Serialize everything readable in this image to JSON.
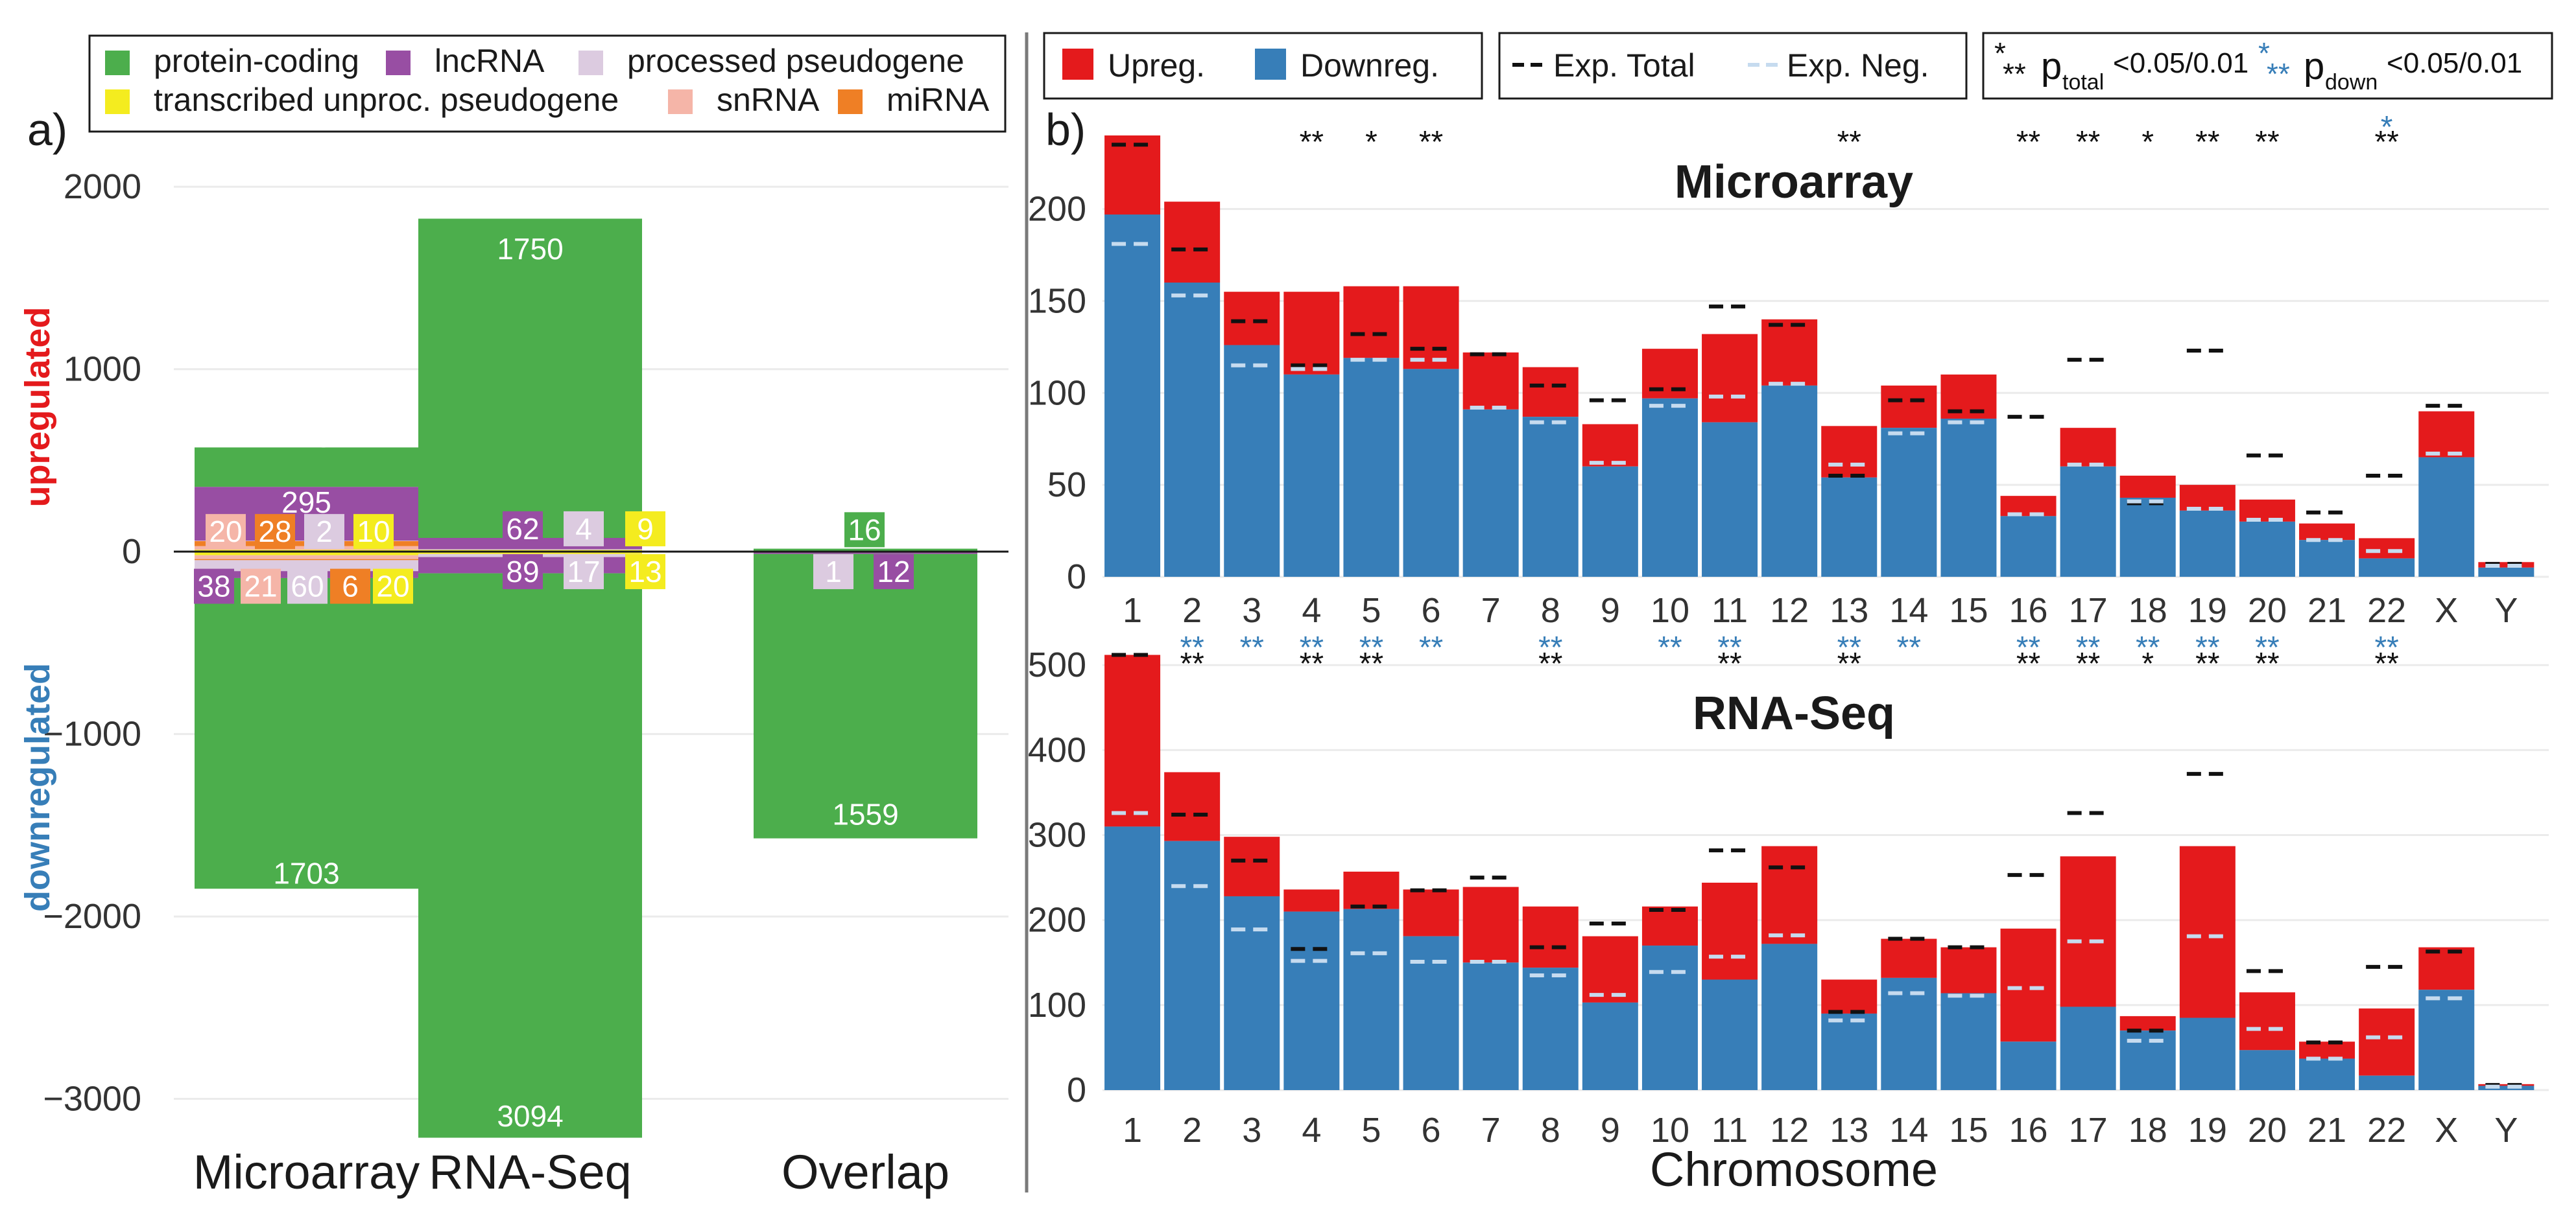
{
  "colors": {
    "protein_coding": "#4cae4c",
    "lncrna": "#984ea3",
    "processed_pseudogene": "#dccbe0",
    "transcribed_unproc_pseudogene": "#f4ec1f",
    "snrna": "#f5b5a8",
    "mirna": "#ef7f25",
    "upreg": "#e41a1c",
    "downreg": "#377eb8",
    "exp_total": "#111111",
    "exp_neg": "#c6dbef",
    "up_axis": "#e41a1c",
    "down_axis": "#377eb8"
  },
  "chart_data": [
    {
      "panel": "a)",
      "type": "bar",
      "stacked": "diverging",
      "categories": [
        "Microarray",
        "RNA-Seq",
        "Overlap"
      ],
      "ylabel_up": "upregulated",
      "ylabel_down": "downregulated",
      "ylim": [
        -3300,
        2100
      ],
      "yticks": [
        2000,
        1000,
        0,
        -1000,
        -2000,
        -3000
      ],
      "ytick_labels": [
        "2000",
        "1000",
        "0",
        "−1000",
        "−2000",
        "−3000"
      ],
      "legend": [
        {
          "key": "protein_coding",
          "label": "protein-coding"
        },
        {
          "key": "lncrna",
          "label": "lncRNA"
        },
        {
          "key": "processed_pseudogene",
          "label": "processed pseudogene"
        },
        {
          "key": "transcribed_unproc_pseudogene",
          "label": "transcribed unproc. pseudogene"
        },
        {
          "key": "snrna",
          "label": "snRNA"
        },
        {
          "key": "mirna",
          "label": "miRNA"
        }
      ],
      "stack_order": [
        "transcribed_unproc_pseudogene",
        "snrna",
        "mirna",
        "processed_pseudogene",
        "lncrna",
        "protein_coding"
      ],
      "up": {
        "protein_coding": [
          216,
          1750,
          16
        ],
        "lncrna": [
          295,
          62,
          0
        ],
        "processed_pseudogene": [
          2,
          4,
          0
        ],
        "transcribed_unproc_pseudogene": [
          10,
          9,
          0
        ],
        "snrna": [
          20,
          0,
          0
        ],
        "mirna": [
          28,
          0,
          0
        ]
      },
      "down": {
        "protein_coding": [
          1703,
          3094,
          1559
        ],
        "lncrna": [
          38,
          89,
          12
        ],
        "processed_pseudogene": [
          60,
          17,
          1
        ],
        "transcribed_unproc_pseudogene": [
          20,
          13,
          0
        ],
        "snrna": [
          21,
          0,
          0
        ],
        "mirna": [
          6,
          0,
          0
        ]
      }
    },
    {
      "panel": "b)",
      "type": "bar",
      "stacked": true,
      "xlabel": "Chromosome",
      "categories": [
        "1",
        "2",
        "3",
        "4",
        "5",
        "6",
        "7",
        "8",
        "9",
        "10",
        "11",
        "12",
        "13",
        "14",
        "15",
        "16",
        "17",
        "18",
        "19",
        "20",
        "21",
        "22",
        "X",
        "Y"
      ],
      "legend": {
        "upreg": "Upreg.",
        "downreg": "Downreg.",
        "exp_total": "Exp. Total",
        "exp_neg": "Exp. Neg.",
        "sig_single": "*",
        "sig_double": "**",
        "p_total_text": "p",
        "p_total_sub": "total",
        "p_down_text": "p",
        "p_down_sub": "down",
        "p_threshold": "<0.05/0.01"
      },
      "panels": [
        {
          "title": "Microarray",
          "ylim": [
            0,
            240
          ],
          "yticks": [
            0,
            50,
            100,
            150,
            200
          ],
          "ytick_labels": [
            "0",
            "50",
            "100",
            "150",
            "200"
          ],
          "down": [
            197,
            160,
            126,
            110,
            119,
            113,
            91,
            87,
            60,
            97,
            84,
            104,
            54,
            81,
            86,
            33,
            60,
            43,
            36,
            30,
            20,
            10,
            65,
            5
          ],
          "total": [
            240,
            204,
            155,
            155,
            158,
            158,
            122,
            114,
            83,
            124,
            132,
            140,
            82,
            104,
            110,
            44,
            81,
            55,
            50,
            42,
            29,
            21,
            90,
            8
          ],
          "exp_total": [
            235,
            178,
            139,
            115,
            132,
            124,
            121,
            104,
            96,
            102,
            147,
            137,
            55,
            96,
            90,
            87,
            118,
            40,
            123,
            66,
            35,
            55,
            93,
            7
          ],
          "exp_neg": [
            181,
            153,
            115,
            113,
            118,
            118,
            92,
            84,
            62,
            93,
            98,
            105,
            61,
            78,
            84,
            34,
            61,
            41,
            37,
            31,
            20,
            14,
            67,
            6
          ],
          "sig_total": [
            "",
            "",
            "",
            "**",
            "*",
            "**",
            "",
            "",
            "",
            "",
            "",
            "",
            "**",
            "",
            "",
            "**",
            "**",
            "*",
            "**",
            "**",
            "",
            "**",
            "",
            ""
          ],
          "sig_down": [
            "",
            "",
            "",
            "",
            "",
            "",
            "",
            "",
            "",
            "",
            "",
            "",
            "",
            "",
            "",
            "",
            "",
            "",
            "",
            "",
            "",
            "*",
            "",
            ""
          ]
        },
        {
          "title": "RNA-Seq",
          "ylim": [
            0,
            520
          ],
          "yticks": [
            0,
            100,
            200,
            300,
            400,
            500
          ],
          "ytick_labels": [
            "0",
            "100",
            "200",
            "300",
            "400",
            "500"
          ],
          "down": [
            310,
            293,
            228,
            210,
            213,
            181,
            150,
            144,
            103,
            170,
            130,
            172,
            90,
            132,
            114,
            57,
            98,
            70,
            85,
            47,
            37,
            17,
            118,
            5
          ],
          "total": [
            512,
            374,
            298,
            236,
            257,
            236,
            239,
            216,
            181,
            216,
            244,
            287,
            130,
            178,
            168,
            190,
            275,
            87,
            287,
            115,
            57,
            96,
            168,
            7
          ],
          "exp_total": [
            512,
            324,
            270,
            166,
            216,
            235,
            250,
            168,
            196,
            212,
            282,
            262,
            92,
            178,
            168,
            253,
            326,
            70,
            372,
            140,
            56,
            145,
            163,
            6
          ],
          "exp_neg": [
            326,
            240,
            189,
            152,
            161,
            151,
            151,
            135,
            112,
            139,
            157,
            182,
            82,
            114,
            111,
            120,
            175,
            58,
            181,
            72,
            37,
            62,
            108,
            4
          ],
          "sig_total": [
            "",
            "**",
            "",
            "**",
            "**",
            "",
            "",
            "**",
            "",
            "",
            "**",
            "",
            "**",
            "",
            "",
            "**",
            "**",
            "*",
            "**",
            "**",
            "",
            "**",
            "",
            ""
          ],
          "sig_down": [
            "",
            "**",
            "**",
            "**",
            "**",
            "**",
            "",
            "**",
            "",
            "**",
            "**",
            "",
            "**",
            "**",
            "",
            "**",
            "**",
            "**",
            "**",
            "**",
            "",
            "**",
            "",
            ""
          ]
        }
      ]
    }
  ]
}
